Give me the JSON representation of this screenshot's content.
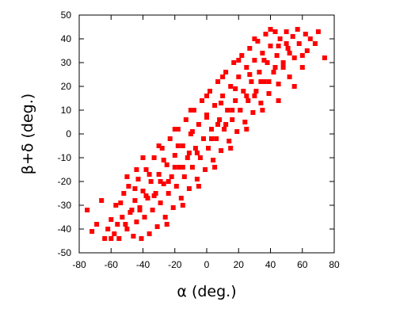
{
  "chart_data": {
    "type": "scatter",
    "title": "",
    "xlabel": "α (deg.)",
    "ylabel": "β+δ (deg.)",
    "xlim": [
      -80,
      80
    ],
    "ylim": [
      -50,
      50
    ],
    "x_ticks": [
      -80,
      -60,
      -40,
      -20,
      0,
      20,
      40,
      60,
      80
    ],
    "y_ticks": [
      -50,
      -40,
      -30,
      -20,
      -10,
      0,
      10,
      20,
      30,
      40,
      50
    ],
    "grid": false,
    "legend": "none",
    "marker": "square",
    "colors": {
      "points": "#ff0000",
      "axes": "#000000",
      "background": "#ffffff"
    },
    "series": [
      {
        "values": [
          {
            "x": -75,
            "y": -32
          },
          {
            "x": -72,
            "y": -41
          },
          {
            "x": -69,
            "y": -38
          },
          {
            "x": -66,
            "y": -28
          },
          {
            "x": -64,
            "y": -44
          },
          {
            "x": -62,
            "y": -40
          },
          {
            "x": -60,
            "y": -36
          },
          {
            "x": -58,
            "y": -42
          },
          {
            "x": -57,
            "y": -30
          },
          {
            "x": -55,
            "y": -44
          },
          {
            "x": -53,
            "y": -35
          },
          {
            "x": -52,
            "y": -25
          },
          {
            "x": -50,
            "y": -40
          },
          {
            "x": -49,
            "y": -22
          },
          {
            "x": -48,
            "y": -33
          },
          {
            "x": -46,
            "y": -43
          },
          {
            "x": -45,
            "y": -28
          },
          {
            "x": -44,
            "y": -37
          },
          {
            "x": -43,
            "y": -19
          },
          {
            "x": -42,
            "y": -31
          },
          {
            "x": -41,
            "y": -44
          },
          {
            "x": -40,
            "y": -24
          },
          {
            "x": -39,
            "y": -35
          },
          {
            "x": -38,
            "y": -15
          },
          {
            "x": -37,
            "y": -27
          },
          {
            "x": -36,
            "y": -42
          },
          {
            "x": -35,
            "y": -20
          },
          {
            "x": -34,
            "y": -32
          },
          {
            "x": -33,
            "y": -10
          },
          {
            "x": -32,
            "y": -25
          },
          {
            "x": -31,
            "y": -39
          },
          {
            "x": -30,
            "y": -17
          },
          {
            "x": -29,
            "y": -29
          },
          {
            "x": -28,
            "y": -6
          },
          {
            "x": -27,
            "y": -21
          },
          {
            "x": -26,
            "y": -35
          },
          {
            "x": -25,
            "y": -13
          },
          {
            "x": -24,
            "y": -25
          },
          {
            "x": -23,
            "y": -2
          },
          {
            "x": -22,
            "y": -18
          },
          {
            "x": -21,
            "y": -31
          },
          {
            "x": -20,
            "y": -9
          },
          {
            "x": -19,
            "y": -22
          },
          {
            "x": -18,
            "y": 2
          },
          {
            "x": -17,
            "y": -14
          },
          {
            "x": -16,
            "y": -27
          },
          {
            "x": -15,
            "y": -5
          },
          {
            "x": -14,
            "y": -18
          },
          {
            "x": -13,
            "y": 6
          },
          {
            "x": -12,
            "y": -10
          },
          {
            "x": -11,
            "y": -23
          },
          {
            "x": -10,
            "y": 0
          },
          {
            "x": -9,
            "y": -14
          },
          {
            "x": -8,
            "y": 10
          },
          {
            "x": -7,
            "y": -6
          },
          {
            "x": -6,
            "y": -19
          },
          {
            "x": -5,
            "y": 4
          },
          {
            "x": -4,
            "y": -10
          },
          {
            "x": -3,
            "y": 14
          },
          {
            "x": -2,
            "y": -2
          },
          {
            "x": -1,
            "y": -15
          },
          {
            "x": 0,
            "y": 8
          },
          {
            "x": 1,
            "y": -6
          },
          {
            "x": 2,
            "y": 18
          },
          {
            "x": 3,
            "y": 2
          },
          {
            "x": 4,
            "y": -11
          },
          {
            "x": 5,
            "y": 12
          },
          {
            "x": 6,
            "y": -2
          },
          {
            "x": 7,
            "y": 22
          },
          {
            "x": 8,
            "y": 6
          },
          {
            "x": 9,
            "y": -7
          },
          {
            "x": 10,
            "y": 16
          },
          {
            "x": 11,
            "y": 2
          },
          {
            "x": 12,
            "y": 26
          },
          {
            "x": 13,
            "y": 10
          },
          {
            "x": 14,
            "y": -3
          },
          {
            "x": 15,
            "y": 20
          },
          {
            "x": 16,
            "y": 6
          },
          {
            "x": 17,
            "y": 30
          },
          {
            "x": 18,
            "y": 14
          },
          {
            "x": 19,
            "y": 1
          },
          {
            "x": 20,
            "y": 24
          },
          {
            "x": 21,
            "y": 10
          },
          {
            "x": 22,
            "y": 33
          },
          {
            "x": 23,
            "y": 18
          },
          {
            "x": 24,
            "y": 5
          },
          {
            "x": 25,
            "y": 28
          },
          {
            "x": 26,
            "y": 14
          },
          {
            "x": 27,
            "y": 36
          },
          {
            "x": 28,
            "y": 22
          },
          {
            "x": 29,
            "y": 9
          },
          {
            "x": 30,
            "y": 31
          },
          {
            "x": 31,
            "y": 18
          },
          {
            "x": 32,
            "y": 39
          },
          {
            "x": 33,
            "y": 26
          },
          {
            "x": 34,
            "y": 13
          },
          {
            "x": 35,
            "y": 34
          },
          {
            "x": 36,
            "y": 22
          },
          {
            "x": 37,
            "y": 42
          },
          {
            "x": 38,
            "y": 30
          },
          {
            "x": 39,
            "y": 17
          },
          {
            "x": 40,
            "y": 37
          },
          {
            "x": 42,
            "y": 26
          },
          {
            "x": 43,
            "y": 43
          },
          {
            "x": 44,
            "y": 33
          },
          {
            "x": 45,
            "y": 21
          },
          {
            "x": 46,
            "y": 40
          },
          {
            "x": 48,
            "y": 30
          },
          {
            "x": 50,
            "y": 43
          },
          {
            "x": 51,
            "y": 36
          },
          {
            "x": 52,
            "y": 24
          },
          {
            "x": 54,
            "y": 41
          },
          {
            "x": 55,
            "y": 32
          },
          {
            "x": 57,
            "y": 44
          },
          {
            "x": 58,
            "y": 38
          },
          {
            "x": 60,
            "y": 28
          },
          {
            "x": 62,
            "y": 42
          },
          {
            "x": 63,
            "y": 35
          },
          {
            "x": 65,
            "y": 40
          },
          {
            "x": 68,
            "y": 38
          },
          {
            "x": 70,
            "y": 43
          },
          {
            "x": 74,
            "y": 32
          },
          {
            "x": -56,
            "y": -38
          },
          {
            "x": -47,
            "y": -32
          },
          {
            "x": -38,
            "y": -26
          },
          {
            "x": -29,
            "y": -20
          },
          {
            "x": -20,
            "y": -14
          },
          {
            "x": -11,
            "y": -8
          },
          {
            "x": -2,
            "y": -2
          },
          {
            "x": 7,
            "y": 4
          },
          {
            "x": 16,
            "y": 10
          },
          {
            "x": 25,
            "y": 16
          },
          {
            "x": 34,
            "y": 22
          },
          {
            "x": 43,
            "y": 28
          },
          {
            "x": 52,
            "y": 34
          },
          {
            "x": -54,
            "y": -29
          },
          {
            "x": -45,
            "y": -23
          },
          {
            "x": -36,
            "y": -17
          },
          {
            "x": -27,
            "y": -11
          },
          {
            "x": -18,
            "y": -5
          },
          {
            "x": -9,
            "y": 1
          },
          {
            "x": 0,
            "y": 7
          },
          {
            "x": 9,
            "y": 13
          },
          {
            "x": 18,
            "y": 19
          },
          {
            "x": 27,
            "y": 25
          },
          {
            "x": 36,
            "y": 31
          },
          {
            "x": 45,
            "y": 37
          },
          {
            "x": -60,
            "y": -44
          },
          {
            "x": -51,
            "y": -38
          },
          {
            "x": -42,
            "y": -32
          },
          {
            "x": -33,
            "y": -26
          },
          {
            "x": -24,
            "y": -20
          },
          {
            "x": -15,
            "y": -14
          },
          {
            "x": -6,
            "y": -8
          },
          {
            "x": 3,
            "y": -2
          },
          {
            "x": 12,
            "y": 4
          },
          {
            "x": 21,
            "y": 10
          },
          {
            "x": 30,
            "y": 16
          },
          {
            "x": 39,
            "y": 22
          },
          {
            "x": 48,
            "y": 28
          },
          {
            "x": -30,
            "y": -5
          },
          {
            "x": -20,
            "y": 2
          },
          {
            "x": -10,
            "y": 10
          },
          {
            "x": 0,
            "y": 16
          },
          {
            "x": 10,
            "y": 24
          },
          {
            "x": 20,
            "y": 31
          },
          {
            "x": -50,
            "y": -18
          },
          {
            "x": -40,
            "y": -10
          },
          {
            "x": -25,
            "y": -38
          },
          {
            "x": -15,
            "y": -30
          },
          {
            "x": -5,
            "y": -22
          },
          {
            "x": 5,
            "y": -14
          },
          {
            "x": 15,
            "y": -6
          },
          {
            "x": 25,
            "y": 2
          },
          {
            "x": 35,
            "y": 10
          },
          {
            "x": 45,
            "y": 14
          },
          {
            "x": 55,
            "y": 20
          },
          {
            "x": -44,
            "y": -15
          },
          {
            "x": 30,
            "y": 40
          },
          {
            "x": 40,
            "y": 44
          },
          {
            "x": 50,
            "y": 38
          },
          {
            "x": 60,
            "y": 33
          }
        ]
      }
    ]
  }
}
